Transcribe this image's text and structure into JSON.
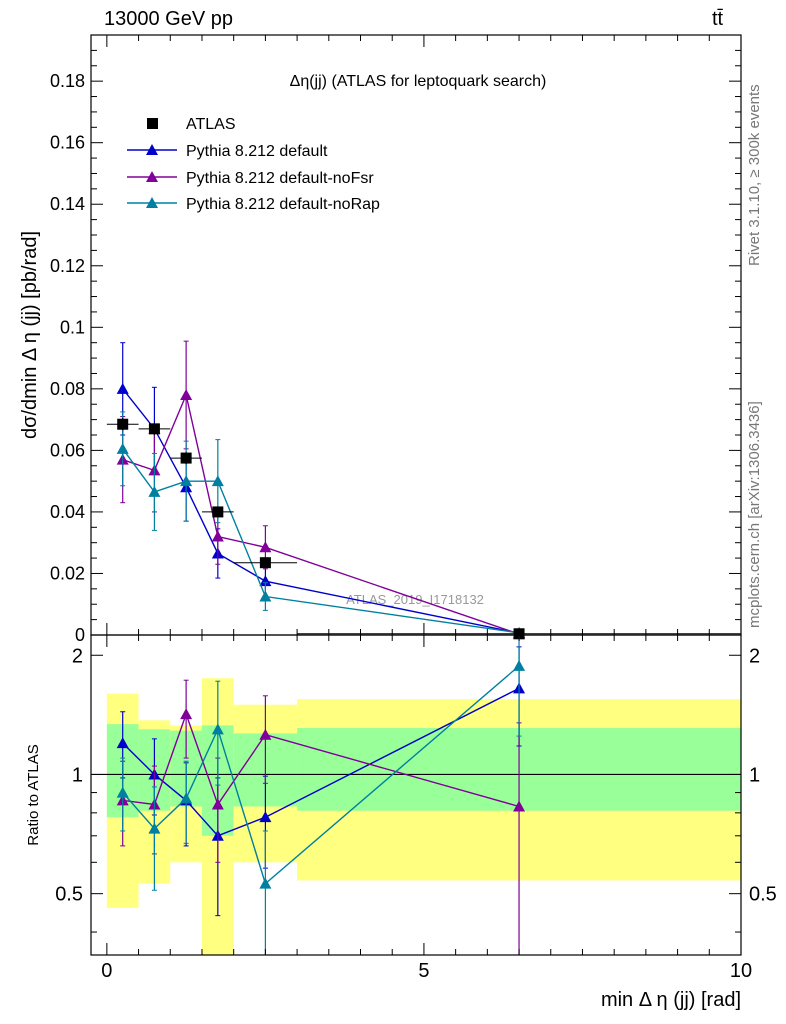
{
  "header": {
    "energy_label": "13000 GeV pp",
    "process_label": "tt̄",
    "side_label_rivet": "Rivet 3.1.10, ≥ 300k events",
    "side_label_mcplots": "mcplots.cern.ch [arXiv:1306.3436]"
  },
  "chart_data": [
    {
      "type": "scatter",
      "role": "main",
      "title": "Δη(jj) (ATLAS for leptoquark search)",
      "xlabel": "min Δ η (jj) [rad]",
      "ylabel": "dσ/dmin Δ η (jj) [pb/rad]",
      "xlim": [
        -0.25,
        10
      ],
      "ylim": [
        0,
        0.195
      ],
      "yticks": [
        0,
        0.02,
        0.04,
        0.06,
        0.08,
        0.1,
        0.12,
        0.14,
        0.16,
        0.18
      ],
      "ytick_labels": [
        "0",
        "0.02",
        "0.04",
        "0.06",
        "0.08",
        "0.1",
        "0.12",
        "0.14",
        "0.16",
        "0.18"
      ],
      "watermark": "ATLAS_2019_I1718132",
      "data": {
        "name": "ATLAS",
        "x": [
          0.25,
          0.75,
          1.25,
          1.75,
          2.5,
          6.5
        ],
        "y": [
          0.0685,
          0.067,
          0.0575,
          0.04,
          0.0235,
          0.0004
        ],
        "yerr": [
          0.002,
          0.002,
          0.002,
          0.0015,
          0.0015,
          0.0002
        ],
        "xerr": [
          0.25,
          0.25,
          0.25,
          0.25,
          0.5,
          3.5
        ]
      },
      "series": [
        {
          "name": "Pythia 8.212 default",
          "color": "#0000cc",
          "x": [
            0.25,
            0.75,
            1.25,
            1.75,
            2.5,
            6.5
          ],
          "y": [
            0.08,
            0.067,
            0.048,
            0.0265,
            0.0175,
            0.0006
          ],
          "yerr": [
            0.015,
            0.0135,
            0.011,
            0.008,
            0.005,
            0.0003
          ]
        },
        {
          "name": "Pythia 8.212 default-noFsr",
          "color": "#800099",
          "x": [
            0.25,
            0.75,
            1.25,
            1.75,
            2.5,
            6.5
          ],
          "y": [
            0.057,
            0.0535,
            0.078,
            0.032,
            0.0285,
            0.0003
          ],
          "yerr": [
            0.014,
            0.0135,
            0.0175,
            0.009,
            0.007,
            0.0003
          ]
        },
        {
          "name": "Pythia 8.212 default-noRap",
          "color": "#0080a0",
          "x": [
            0.25,
            0.75,
            1.25,
            1.75,
            2.5,
            6.5
          ],
          "y": [
            0.0605,
            0.0465,
            0.05,
            0.05,
            0.0125,
            0.0007
          ],
          "yerr": [
            0.012,
            0.0125,
            0.013,
            0.0135,
            0.0045,
            0.0003
          ]
        }
      ]
    },
    {
      "type": "scatter",
      "role": "ratio",
      "xlabel": "min Δ η (jj) [rad]",
      "ylabel": "Ratio to ATLAS",
      "xlim": [
        -0.25,
        10
      ],
      "ylim": [
        0.35,
        2.25
      ],
      "yticks": [
        0.5,
        1,
        2
      ],
      "ytick_labels": [
        "0.5",
        "1",
        "2"
      ],
      "xticks": [
        0,
        5,
        10
      ],
      "xtick_labels": [
        "0",
        "5",
        "10"
      ],
      "bands": {
        "x_edges": [
          0,
          0.5,
          1,
          1.5,
          2,
          3,
          10
        ],
        "stat_low": [
          0.78,
          0.81,
          0.83,
          0.7,
          0.83,
          0.81
        ],
        "stat_high": [
          1.34,
          1.3,
          1.29,
          1.33,
          1.27,
          1.31
        ],
        "total_low": [
          0.46,
          0.53,
          0.6,
          0.3,
          0.6,
          0.54
        ],
        "total_high": [
          1.6,
          1.37,
          1.33,
          1.75,
          1.5,
          1.55
        ]
      },
      "series": [
        {
          "name": "Pythia 8.212 default",
          "x": [
            0.25,
            0.75,
            1.25,
            1.75,
            2.5,
            6.5
          ],
          "y": [
            1.2,
            1.0,
            0.86,
            0.7,
            0.78,
            1.65
          ],
          "ylo": [
            0.98,
            0.79,
            0.66,
            0.44,
            0.58,
            1.18
          ],
          "yhi": [
            1.44,
            1.23,
            1.07,
            0.98,
            0.99,
            2.1
          ]
        },
        {
          "name": "Pythia 8.212 default-noFsr",
          "x": [
            0.25,
            0.75,
            1.25,
            1.75,
            2.5,
            6.5
          ],
          "y": [
            0.86,
            0.84,
            1.42,
            0.84,
            1.26,
            0.83
          ],
          "ylo": [
            0.66,
            0.63,
            1.1,
            0.6,
            0.95,
            0.3
          ],
          "yhi": [
            1.08,
            1.05,
            1.73,
            1.1,
            1.58,
            1.35
          ]
        },
        {
          "name": "Pythia 8.212 default-noRap",
          "x": [
            0.25,
            0.75,
            1.25,
            1.75,
            2.5,
            6.5
          ],
          "y": [
            0.9,
            0.73,
            0.87,
            1.3,
            0.53,
            1.88
          ],
          "ylo": [
            0.72,
            0.51,
            0.67,
            0.94,
            0.35,
            1.25
          ],
          "yhi": [
            1.1,
            0.93,
            1.08,
            1.72,
            0.72,
            2.25
          ]
        }
      ]
    }
  ]
}
